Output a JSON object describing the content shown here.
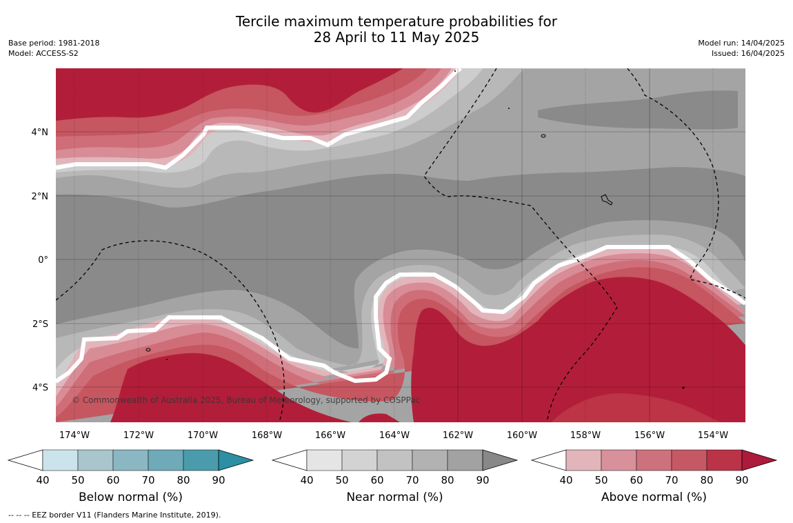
{
  "header": {
    "title_line1": "Tercile maximum temperature probabilities for",
    "title_line2": "28 April to 11 May 2025",
    "base_period": "Base period: 1981-2018",
    "model": "Model: ACCESS-S2",
    "model_run": "Model run: 14/04/2025",
    "issued": "Issued: 16/04/2025"
  },
  "map": {
    "lon_labels": [
      "174°W",
      "172°W",
      "170°W",
      "168°W",
      "166°W",
      "164°W",
      "162°W",
      "160°W",
      "158°W",
      "156°W",
      "154°W"
    ],
    "lat_labels": [
      "4°N",
      "2°N",
      "0°",
      "2°S",
      "4°S"
    ],
    "copyright": "© Commonwealth of Australia 2025, Bureau of Meteorology, supported by COSPPac",
    "colors": {
      "near": [
        "#cdcdcd",
        "#b8b8b8",
        "#a4a4a4",
        "#8a8a8a"
      ],
      "above": [
        "#e2b5bb",
        "#d88c96",
        "#cf6e78",
        "#c65660",
        "#bc3446",
        "#b21e39"
      ]
    }
  },
  "colorbars": [
    {
      "label": "Below normal (%)",
      "ticks": [
        "40",
        "50",
        "60",
        "70",
        "80",
        "90"
      ],
      "colors": [
        "#ffffff",
        "#cbe3ea",
        "#a8c6cc",
        "#8bb7c3",
        "#6eaab8",
        "#4a9cac",
        "#2c8fa3"
      ]
    },
    {
      "label": "Near normal (%)",
      "ticks": [
        "40",
        "50",
        "60",
        "70",
        "80",
        "90"
      ],
      "colors": [
        "#ffffff",
        "#e5e5e5",
        "#d3d3d3",
        "#c2c2c2",
        "#b2b2b2",
        "#a2a2a2",
        "#888888"
      ]
    },
    {
      "label": "Above normal (%)",
      "ticks": [
        "40",
        "50",
        "60",
        "70",
        "80",
        "90"
      ],
      "colors": [
        "#ffffff",
        "#e2b5bb",
        "#d8919a",
        "#cd727d",
        "#c45965",
        "#ba3347",
        "#ae1a3a"
      ]
    }
  ],
  "footnote": "--  --  -- EEZ border V11 (Flanders Marine Institute, 2019)."
}
